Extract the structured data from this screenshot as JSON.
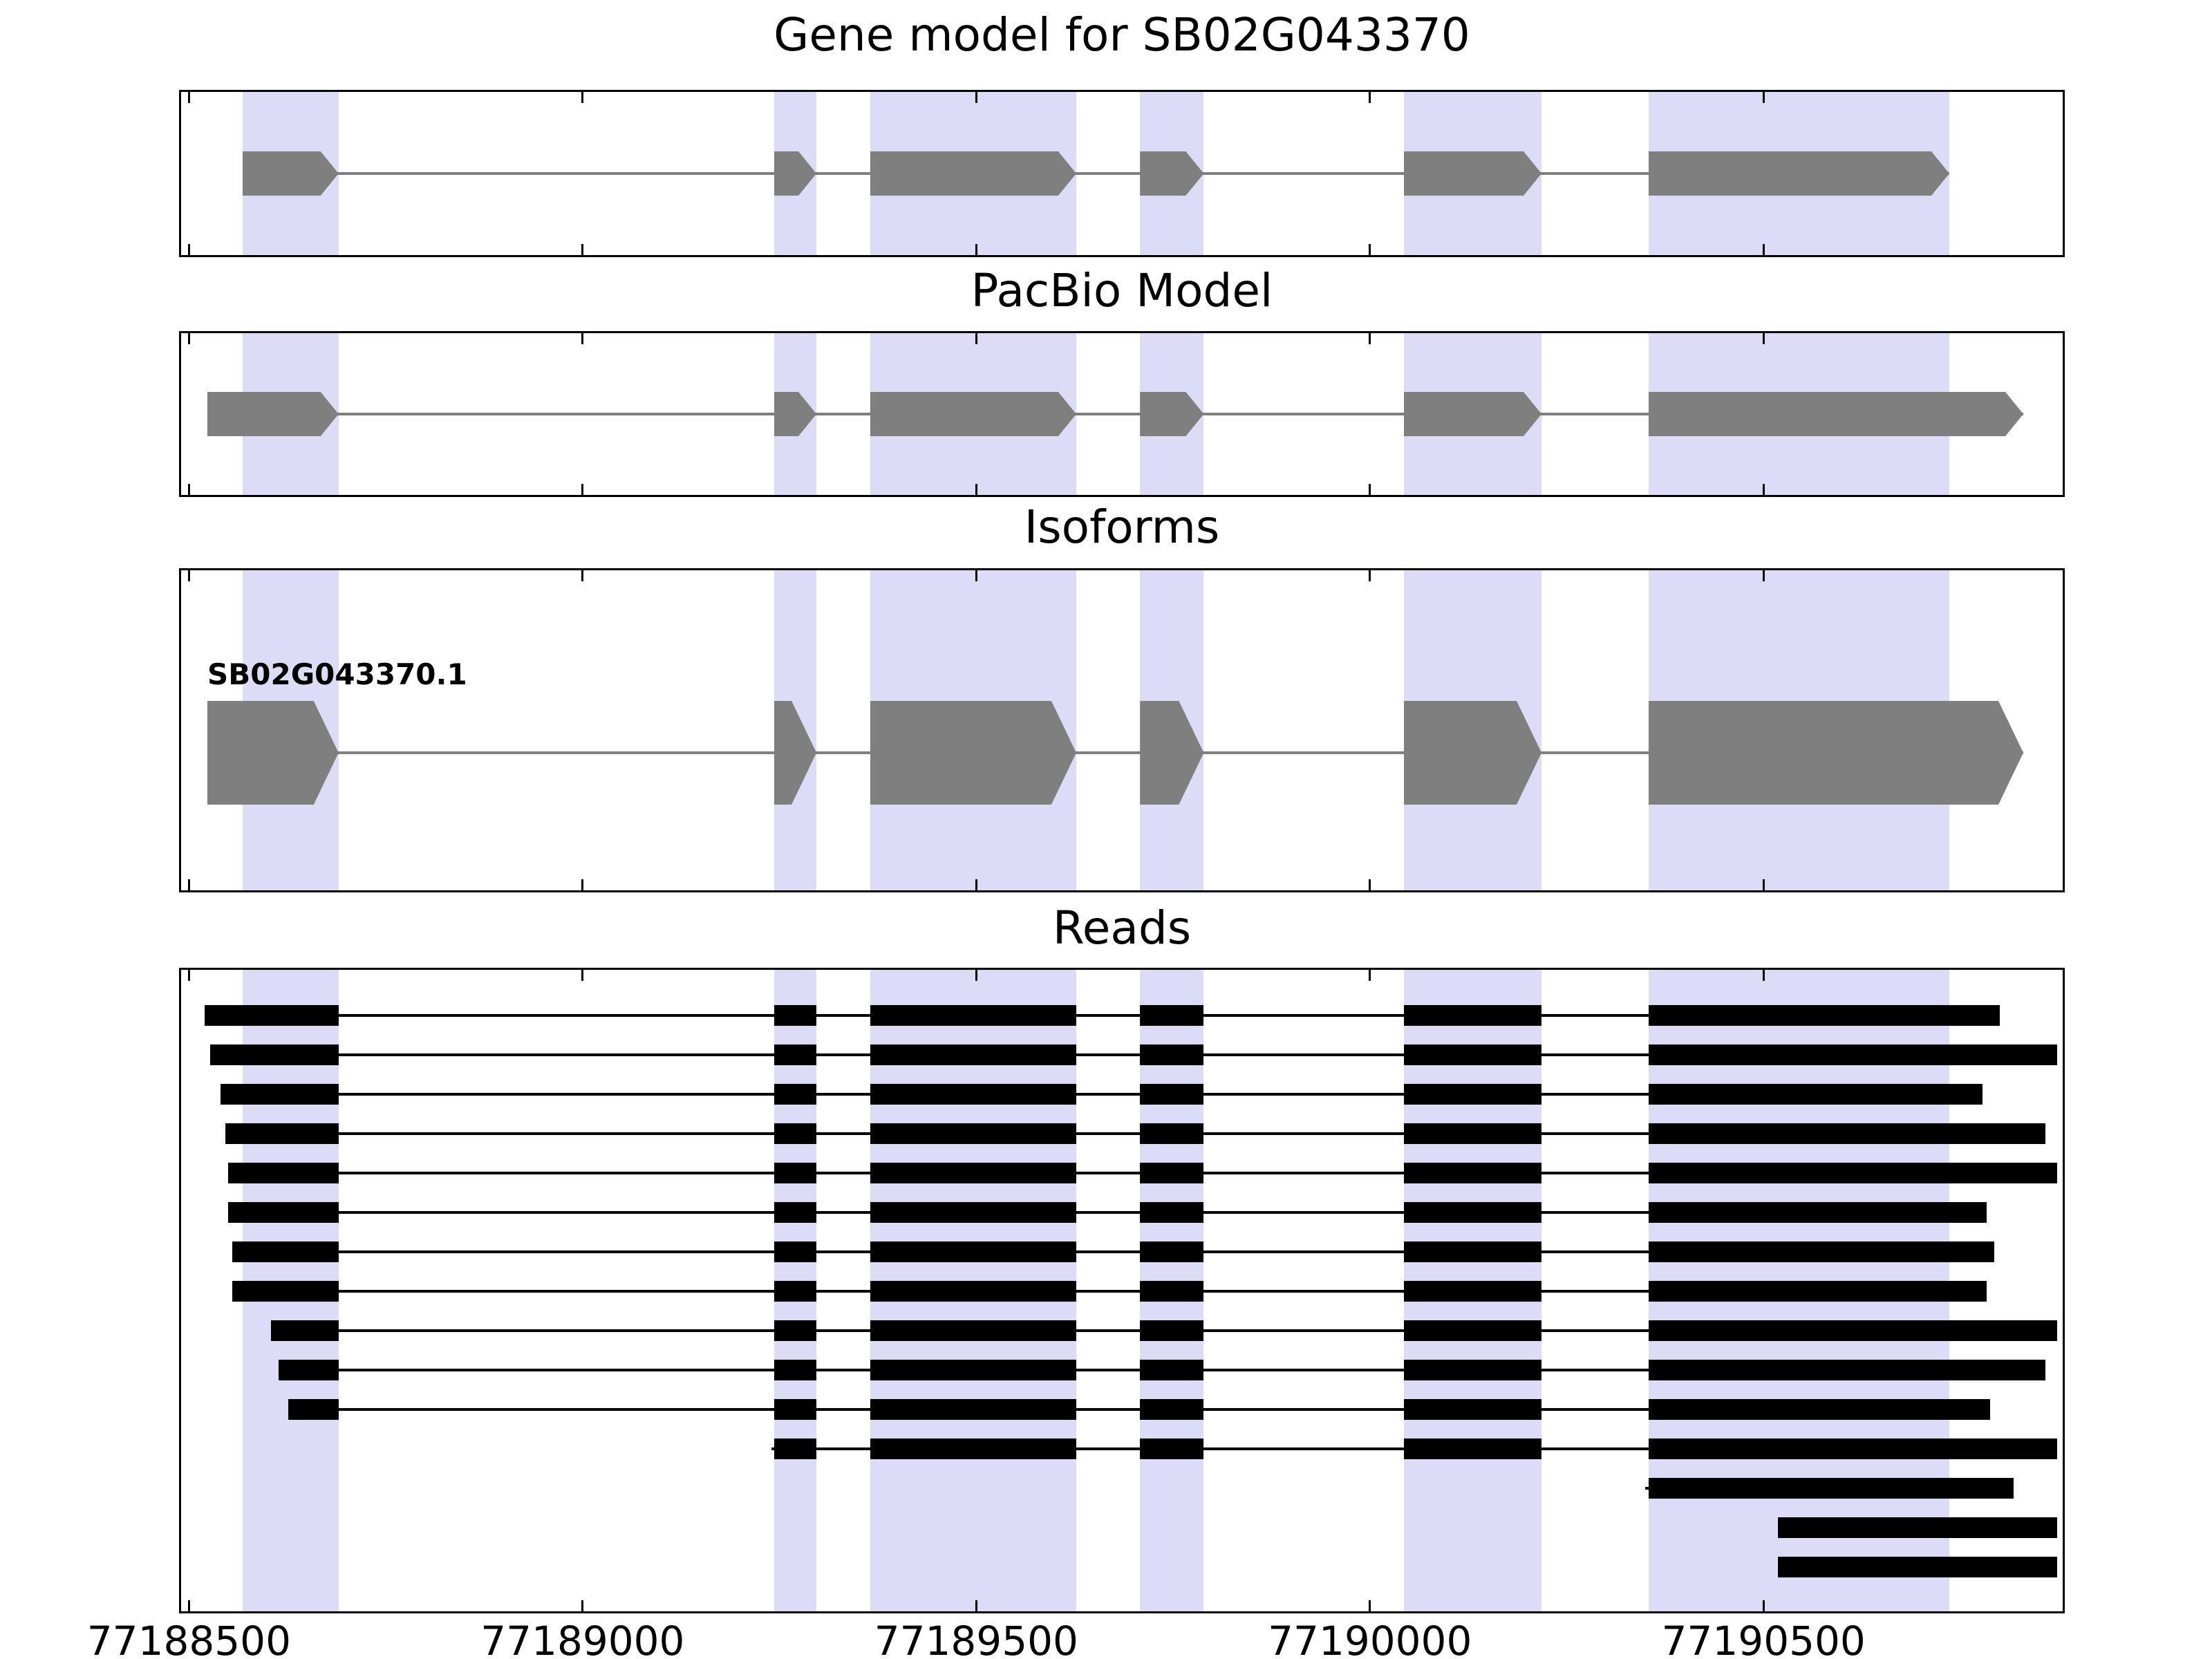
{
  "chart_data": {
    "type": "gene-model-tracks",
    "title": "Gene model for SB02G043370",
    "xlim": [
      77188490,
      77190880
    ],
    "x_ticks": [
      77188500,
      77189000,
      77189500,
      77190000,
      77190500
    ],
    "x_tick_labels": [
      "77188500",
      "77189000",
      "77189500",
      "77190000",
      "77190500"
    ],
    "highlight_regions": [
      [
        77188568,
        77188690
      ],
      [
        77189243,
        77189297
      ],
      [
        77189365,
        77189627
      ],
      [
        77189708,
        77189789
      ],
      [
        77190043,
        77190218
      ],
      [
        77190354,
        77190736
      ]
    ],
    "colors": {
      "exon": "#7f7f7f",
      "intron_line": "#7f7f7f",
      "highlight": "#dcdcf6",
      "read": "#000000",
      "axis": "#000000"
    },
    "panels": [
      {
        "name": "gene-model",
        "title": "Gene model for SB02G043370",
        "strand": "+",
        "exons": [
          [
            77188568,
            77188690
          ],
          [
            77189243,
            77189297
          ],
          [
            77189365,
            77189627
          ],
          [
            77189708,
            77189789
          ],
          [
            77190043,
            77190218
          ],
          [
            77190354,
            77190736
          ]
        ]
      },
      {
        "name": "pacbio-model",
        "title": "PacBio Model",
        "strand": "+",
        "exons": [
          [
            77188523,
            77188690
          ],
          [
            77189243,
            77189297
          ],
          [
            77189365,
            77189627
          ],
          [
            77189708,
            77189789
          ],
          [
            77190043,
            77190218
          ],
          [
            77190354,
            77190830
          ]
        ]
      },
      {
        "name": "isoforms",
        "title": "Isoforms",
        "isoforms": [
          {
            "label": "SB02G043370.1",
            "strand": "+",
            "exons": [
              [
                77188523,
                77188690
              ],
              [
                77189243,
                77189297
              ],
              [
                77189365,
                77189627
              ],
              [
                77189708,
                77189789
              ],
              [
                77190043,
                77190218
              ],
              [
                77190354,
                77190830
              ]
            ]
          }
        ]
      },
      {
        "name": "reads",
        "title": "Reads",
        "read_exon_blocks": [
          [
            77188518,
            77188690
          ],
          [
            77189243,
            77189297
          ],
          [
            77189365,
            77189627
          ],
          [
            77189708,
            77189789
          ],
          [
            77190043,
            77190218
          ],
          [
            77190354,
            77190880
          ]
        ],
        "reads": [
          {
            "start": 77188520,
            "end": 77190800
          },
          {
            "start": 77188527,
            "end": 77190873
          },
          {
            "start": 77188540,
            "end": 77190778
          },
          {
            "start": 77188546,
            "end": 77190858
          },
          {
            "start": 77188550,
            "end": 77190873
          },
          {
            "start": 77188550,
            "end": 77190783
          },
          {
            "start": 77188555,
            "end": 77190793
          },
          {
            "start": 77188555,
            "end": 77190783
          },
          {
            "start": 77188604,
            "end": 77190873
          },
          {
            "start": 77188614,
            "end": 77190858
          },
          {
            "start": 77188626,
            "end": 77190788
          },
          {
            "start": 77189240,
            "end": 77190873
          },
          {
            "start": 77190350,
            "end": 77190818
          },
          {
            "start": 77190518,
            "end": 77190873
          },
          {
            "start": 77190518,
            "end": 77190873
          }
        ]
      }
    ]
  }
}
